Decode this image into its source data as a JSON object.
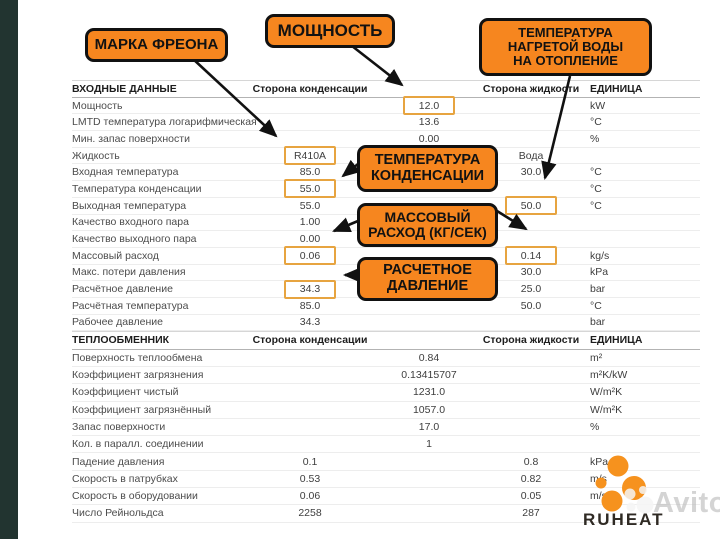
{
  "colors": {
    "callout_orange": "#F6861F",
    "callout_border": "#111111",
    "highlight_border": "#E7A440",
    "sidebar": "#223430",
    "brand_orange": "#F6921E"
  },
  "callouts": [
    {
      "id": "freon",
      "text": "МАРКА ФРЕОНА"
    },
    {
      "id": "power",
      "text": "МОЩНОСТЬ"
    },
    {
      "id": "heated",
      "text": "ТЕМПЕРАТУРА\nНАГРЕТОЙ ВОДЫ\nНА ОТОПЛЕНИЕ"
    },
    {
      "id": "cond",
      "text": "ТЕМПЕРАТУРА\nКОНДЕНСАЦИИ"
    },
    {
      "id": "mass",
      "text": "МАССОВЫЙ\nРАСХОД (КГ/СЕК)"
    },
    {
      "id": "press",
      "text": "РАСЧЕТНОЕ\nДАВЛЕНИЕ"
    }
  ],
  "table": {
    "col_headers": {
      "cond": "Сторона конденсации",
      "liquid": "Сторона жидкости",
      "unit": "ЕДИНИЦА"
    },
    "sections": [
      {
        "title": "ВХОДНЫЕ ДАННЫЕ",
        "rows": [
          {
            "label": "Мощность",
            "mid": "12.0",
            "unit": "kW",
            "hl": [
              "mid"
            ]
          },
          {
            "label": "LMTD температура логарифмическая",
            "mid": "13.6",
            "unit": "°C"
          },
          {
            "label": "Мин. запас поверхности",
            "mid": "0.00",
            "unit": "%"
          },
          {
            "label": "Жидкость",
            "cond": "R410A",
            "liquid": "Вода",
            "hl": [
              "cond"
            ]
          },
          {
            "label": "Входная температура",
            "cond": "85.0",
            "liquid": "30.0",
            "unit": "°C"
          },
          {
            "label": "Температура конденсации",
            "cond": "55.0",
            "unit": "°C",
            "hl": [
              "cond"
            ]
          },
          {
            "label": "Выходная температура",
            "cond": "55.0",
            "liquid": "50.0",
            "unit": "°C",
            "hl": [
              "liquid"
            ]
          },
          {
            "label": "Качество входного пара",
            "cond": "1.00"
          },
          {
            "label": "Качество выходного пара",
            "cond": "0.00"
          },
          {
            "label": "Массовый расход",
            "cond": "0.06",
            "liquid": "0.14",
            "unit": "kg/s",
            "hl": [
              "cond",
              "liquid"
            ]
          },
          {
            "label": "Макс. потери давления",
            "liquid": "30.0",
            "unit": "kPa"
          },
          {
            "label": "Расчётное давление",
            "cond": "34.3",
            "liquid": "25.0",
            "unit": "bar",
            "hl": [
              "cond"
            ]
          },
          {
            "label": "Расчётная температура",
            "cond": "85.0",
            "liquid": "50.0",
            "unit": "°C"
          },
          {
            "label": "Рабочее давление",
            "cond": "34.3",
            "unit": "bar"
          }
        ]
      },
      {
        "title": "ТЕПЛООБМЕННИК",
        "rows": [
          {
            "label": "Поверхность теплообмена",
            "mid": "0.84",
            "unit": "m²"
          },
          {
            "label": "Коэффициент загрязнения",
            "mid": "0.13415707",
            "unit": "m²K/kW"
          },
          {
            "label": "Коэффициент чистый",
            "mid": "1231.0",
            "unit": "W/m²K"
          },
          {
            "label": "Коэффициент загрязнённый",
            "mid": "1057.0",
            "unit": "W/m²K"
          },
          {
            "label": "Запас поверхности",
            "mid": "17.0",
            "unit": "%"
          },
          {
            "label": "Кол. в паралл. соединении",
            "mid": "1"
          },
          {
            "label": "Падение давления",
            "cond": "0.1",
            "liquid": "0.8",
            "unit": "kPa"
          },
          {
            "label": "Скорость в патрубках",
            "cond": "0.53",
            "liquid": "0.82",
            "unit": "m/s"
          },
          {
            "label": "Скорость в оборудовании",
            "cond": "0.06",
            "liquid": "0.05",
            "unit": "m/s"
          },
          {
            "label": "Число Рейнольдса",
            "cond": "2258",
            "liquid": "287"
          }
        ]
      }
    ]
  },
  "branding": {
    "logo_text": "RUHEAT"
  },
  "watermark": {
    "text": "Avito"
  }
}
